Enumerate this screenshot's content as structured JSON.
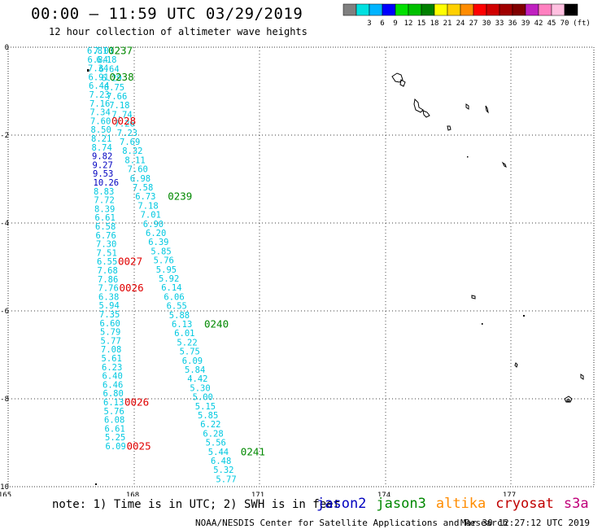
{
  "header": {
    "title": "00:00 — 11:59 UTC 03/29/2019",
    "subtitle": "12 hour collection of altimeter wave heights"
  },
  "legend": {
    "unit": "(ft)",
    "bins": [
      {
        "label": "",
        "color": "#808080"
      },
      {
        "label": "3",
        "color": "#00e0e0"
      },
      {
        "label": "6",
        "color": "#00b4ff"
      },
      {
        "label": "9",
        "color": "#0000ff"
      },
      {
        "label": "12",
        "color": "#00e000"
      },
      {
        "label": "15",
        "color": "#00c000"
      },
      {
        "label": "18",
        "color": "#008000"
      },
      {
        "label": "21",
        "color": "#ffff00"
      },
      {
        "label": "24",
        "color": "#ffd000"
      },
      {
        "label": "27",
        "color": "#ff8c00"
      },
      {
        "label": "30",
        "color": "#ff0000"
      },
      {
        "label": "33",
        "color": "#d00000"
      },
      {
        "label": "36",
        "color": "#a00000"
      },
      {
        "label": "39",
        "color": "#800000"
      },
      {
        "label": "42",
        "color": "#c020c0"
      },
      {
        "label": "45",
        "color": "#ff80c0"
      },
      {
        "label": "70",
        "color": "#ffc0e0"
      },
      {
        "label": "",
        "color": "#000000"
      }
    ]
  },
  "axes": {
    "lon_ticks": [
      "165",
      "168",
      "171",
      "174",
      "177"
    ],
    "lat_ticks": [
      "0",
      "-2",
      "-4",
      "-6",
      "-8",
      "-10"
    ]
  },
  "colors": {
    "cyan": "#00c8e0",
    "blue": "#0000c0",
    "green": "#008800",
    "red": "#e00000",
    "orange": "#ff8c00",
    "darkred": "#c00000",
    "s3a": "#c0007a"
  },
  "tracks": [
    {
      "name": "track-1",
      "values": [
        {
          "t": "6.81",
          "c": "cyan"
        },
        {
          "t": "6.84",
          "c": "cyan"
        },
        {
          "t": "7.34",
          "c": "cyan"
        },
        {
          "t": "6.91",
          "c": "cyan"
        },
        {
          "t": "6.44",
          "c": "cyan"
        },
        {
          "t": "7.23",
          "c": "cyan"
        },
        {
          "t": "7.16",
          "c": "cyan"
        },
        {
          "t": "7.34",
          "c": "cyan"
        },
        {
          "t": "7.60",
          "c": "cyan"
        },
        {
          "t": "8.50",
          "c": "cyan"
        },
        {
          "t": "8.21",
          "c": "cyan"
        },
        {
          "t": "8.74",
          "c": "cyan"
        },
        {
          "t": "9.82",
          "c": "blue"
        },
        {
          "t": "9.27",
          "c": "blue"
        },
        {
          "t": "9.53",
          "c": "blue"
        },
        {
          "t": "10.26",
          "c": "blue"
        },
        {
          "t": "8.83",
          "c": "cyan"
        },
        {
          "t": "7.72",
          "c": "cyan"
        },
        {
          "t": "8.39",
          "c": "cyan"
        },
        {
          "t": "6.61",
          "c": "cyan"
        },
        {
          "t": "6.58",
          "c": "cyan"
        },
        {
          "t": "6.76",
          "c": "cyan"
        },
        {
          "t": "7.30",
          "c": "cyan"
        },
        {
          "t": "7.51",
          "c": "cyan"
        },
        {
          "t": "6.55",
          "c": "cyan"
        },
        {
          "t": "7.68",
          "c": "cyan"
        },
        {
          "t": "7.86",
          "c": "cyan"
        },
        {
          "t": "7.76",
          "c": "cyan"
        },
        {
          "t": "6.38",
          "c": "cyan"
        },
        {
          "t": "5.94",
          "c": "cyan"
        },
        {
          "t": "7.35",
          "c": "cyan"
        },
        {
          "t": "6.60",
          "c": "cyan"
        },
        {
          "t": "5.79",
          "c": "cyan"
        },
        {
          "t": "5.77",
          "c": "cyan"
        },
        {
          "t": "7.08",
          "c": "cyan"
        },
        {
          "t": "5.61",
          "c": "cyan"
        },
        {
          "t": "6.23",
          "c": "cyan"
        },
        {
          "t": "6.40",
          "c": "cyan"
        },
        {
          "t": "6.46",
          "c": "cyan"
        },
        {
          "t": "6.80",
          "c": "cyan"
        },
        {
          "t": "6.13",
          "c": "cyan"
        },
        {
          "t": "5.76",
          "c": "cyan"
        },
        {
          "t": "6.08",
          "c": "cyan"
        },
        {
          "t": "6.61",
          "c": "cyan"
        },
        {
          "t": "5.25",
          "c": "cyan"
        },
        {
          "t": "6.09",
          "c": "cyan"
        }
      ]
    },
    {
      "name": "track-2",
      "values": [
        {
          "t": "7.01",
          "c": "cyan"
        },
        {
          "t": "6.18",
          "c": "cyan"
        },
        {
          "t": "6.64",
          "c": "cyan"
        },
        {
          "t": "6.29",
          "c": "cyan"
        },
        {
          "t": "6.75",
          "c": "cyan"
        },
        {
          "t": "7.66",
          "c": "cyan"
        },
        {
          "t": "7.18",
          "c": "cyan"
        },
        {
          "t": "7.74",
          "c": "cyan"
        },
        {
          "t": "7.26",
          "c": "cyan"
        },
        {
          "t": "7.23",
          "c": "cyan"
        },
        {
          "t": "7.69",
          "c": "cyan"
        },
        {
          "t": "8.32",
          "c": "cyan"
        },
        {
          "t": "8.11",
          "c": "cyan"
        },
        {
          "t": "7.60",
          "c": "cyan"
        },
        {
          "t": "6.98",
          "c": "cyan"
        },
        {
          "t": "7.58",
          "c": "cyan"
        },
        {
          "t": "6.73",
          "c": "cyan"
        },
        {
          "t": "7.18",
          "c": "cyan"
        },
        {
          "t": "7.01",
          "c": "cyan"
        },
        {
          "t": "6.90",
          "c": "cyan"
        },
        {
          "t": "6.20",
          "c": "cyan"
        },
        {
          "t": "6.39",
          "c": "cyan"
        },
        {
          "t": "5.85",
          "c": "cyan"
        },
        {
          "t": "5.76",
          "c": "cyan"
        },
        {
          "t": "5.95",
          "c": "cyan"
        },
        {
          "t": "5.92",
          "c": "cyan"
        },
        {
          "t": "6.14",
          "c": "cyan"
        },
        {
          "t": "6.06",
          "c": "cyan"
        },
        {
          "t": "6.55",
          "c": "cyan"
        },
        {
          "t": "5.88",
          "c": "cyan"
        },
        {
          "t": "6.13",
          "c": "cyan"
        },
        {
          "t": "6.01",
          "c": "cyan"
        },
        {
          "t": "5.22",
          "c": "cyan"
        },
        {
          "t": "5.75",
          "c": "cyan"
        },
        {
          "t": "6.09",
          "c": "cyan"
        },
        {
          "t": "5.84",
          "c": "cyan"
        },
        {
          "t": "4.42",
          "c": "cyan"
        },
        {
          "t": "5.30",
          "c": "cyan"
        },
        {
          "t": "5.00",
          "c": "cyan"
        },
        {
          "t": "5.15",
          "c": "cyan"
        },
        {
          "t": "5.85",
          "c": "cyan"
        },
        {
          "t": "6.22",
          "c": "cyan"
        },
        {
          "t": "6.28",
          "c": "cyan"
        },
        {
          "t": "5.56",
          "c": "cyan"
        },
        {
          "t": "5.44",
          "c": "cyan"
        },
        {
          "t": "6.48",
          "c": "cyan"
        },
        {
          "t": "5.32",
          "c": "cyan"
        },
        {
          "t": "5.77",
          "c": "cyan"
        }
      ]
    }
  ],
  "time_labels": [
    {
      "t": "0237",
      "c": "green",
      "side": "right",
      "row": 0,
      "track": 0
    },
    {
      "t": "0238",
      "c": "green",
      "side": "right",
      "row": 3,
      "track": 0
    },
    {
      "t": "0028",
      "c": "red",
      "side": "right",
      "row": 8,
      "track": 0
    },
    {
      "t": "0239",
      "c": "green",
      "side": "right",
      "row": 16,
      "track": 1
    },
    {
      "t": "0027",
      "c": "red",
      "side": "right",
      "row": 24,
      "track": 0
    },
    {
      "t": "0026",
      "c": "red",
      "side": "right",
      "row": 27,
      "track": 0
    },
    {
      "t": "0240",
      "c": "green",
      "side": "right",
      "row": 30,
      "track": 1
    },
    {
      "t": "0026",
      "c": "red",
      "side": "right",
      "row": 40,
      "track": 0
    },
    {
      "t": "0241",
      "c": "green",
      "side": "right",
      "row": 44,
      "track": 1
    },
    {
      "t": "0025",
      "c": "red",
      "side": "right",
      "row": 45,
      "track": 0
    }
  ],
  "footer": {
    "note": "note: 1) Time is in UTC; 2) SWH is in feet",
    "satellites": [
      {
        "name": "jason2",
        "color": "blue"
      },
      {
        "name": "jason3",
        "color": "green"
      },
      {
        "name": "altika",
        "color": "orange"
      },
      {
        "name": "cryosat",
        "color": "darkred"
      },
      {
        "name": "s3a",
        "color": "s3a"
      }
    ],
    "credit": "NOAA/NESDIS Center for Satellite Applications and Research",
    "generated": "Mar 30 12:27:12 UTC 2019"
  }
}
